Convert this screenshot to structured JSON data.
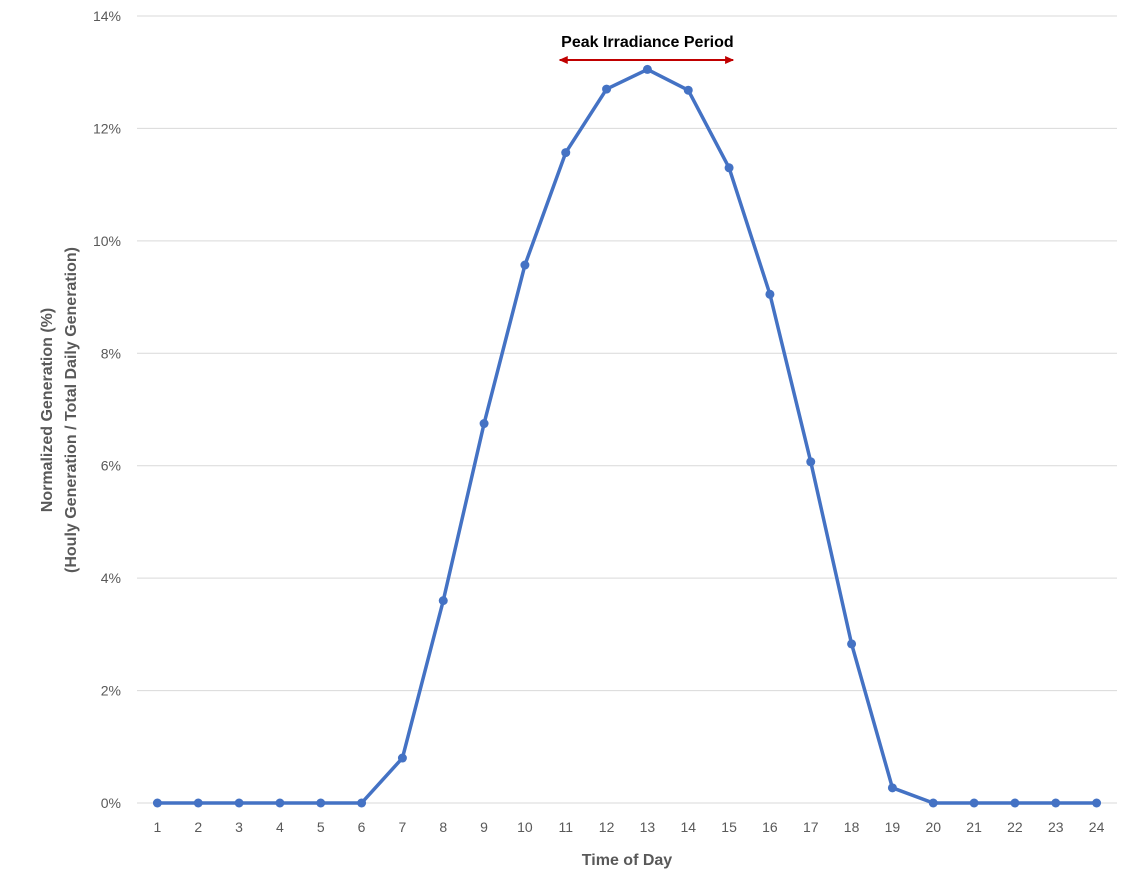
{
  "chart_data": {
    "type": "line",
    "title": "",
    "xlabel": "Time of Day",
    "ylabel_line1": "Normalized Generation (%)",
    "ylabel_line2": "(Houly Generation / Total Daily Generation)",
    "x": [
      1,
      2,
      3,
      4,
      5,
      6,
      7,
      8,
      9,
      10,
      11,
      12,
      13,
      14,
      15,
      16,
      17,
      18,
      19,
      20,
      21,
      22,
      23,
      24
    ],
    "series": [
      {
        "values": [
          0,
          0,
          0,
          0,
          0,
          0,
          0.8,
          3.6,
          6.75,
          9.57,
          11.57,
          12.7,
          13.05,
          12.68,
          11.3,
          9.05,
          6.07,
          2.83,
          0.27,
          0,
          0,
          0,
          0,
          0
        ],
        "color": "#4472c4"
      }
    ],
    "ylim": [
      0,
      14
    ],
    "yticks": [
      0,
      2,
      4,
      6,
      8,
      10,
      12,
      14
    ],
    "ytick_labels": [
      "0%",
      "2%",
      "4%",
      "6%",
      "8%",
      "10%",
      "12%",
      "14%"
    ],
    "grid": true,
    "annotation": {
      "text": "Peak Irradiance Period",
      "x_start": 11,
      "x_end": 15,
      "color": "#c00000"
    }
  }
}
